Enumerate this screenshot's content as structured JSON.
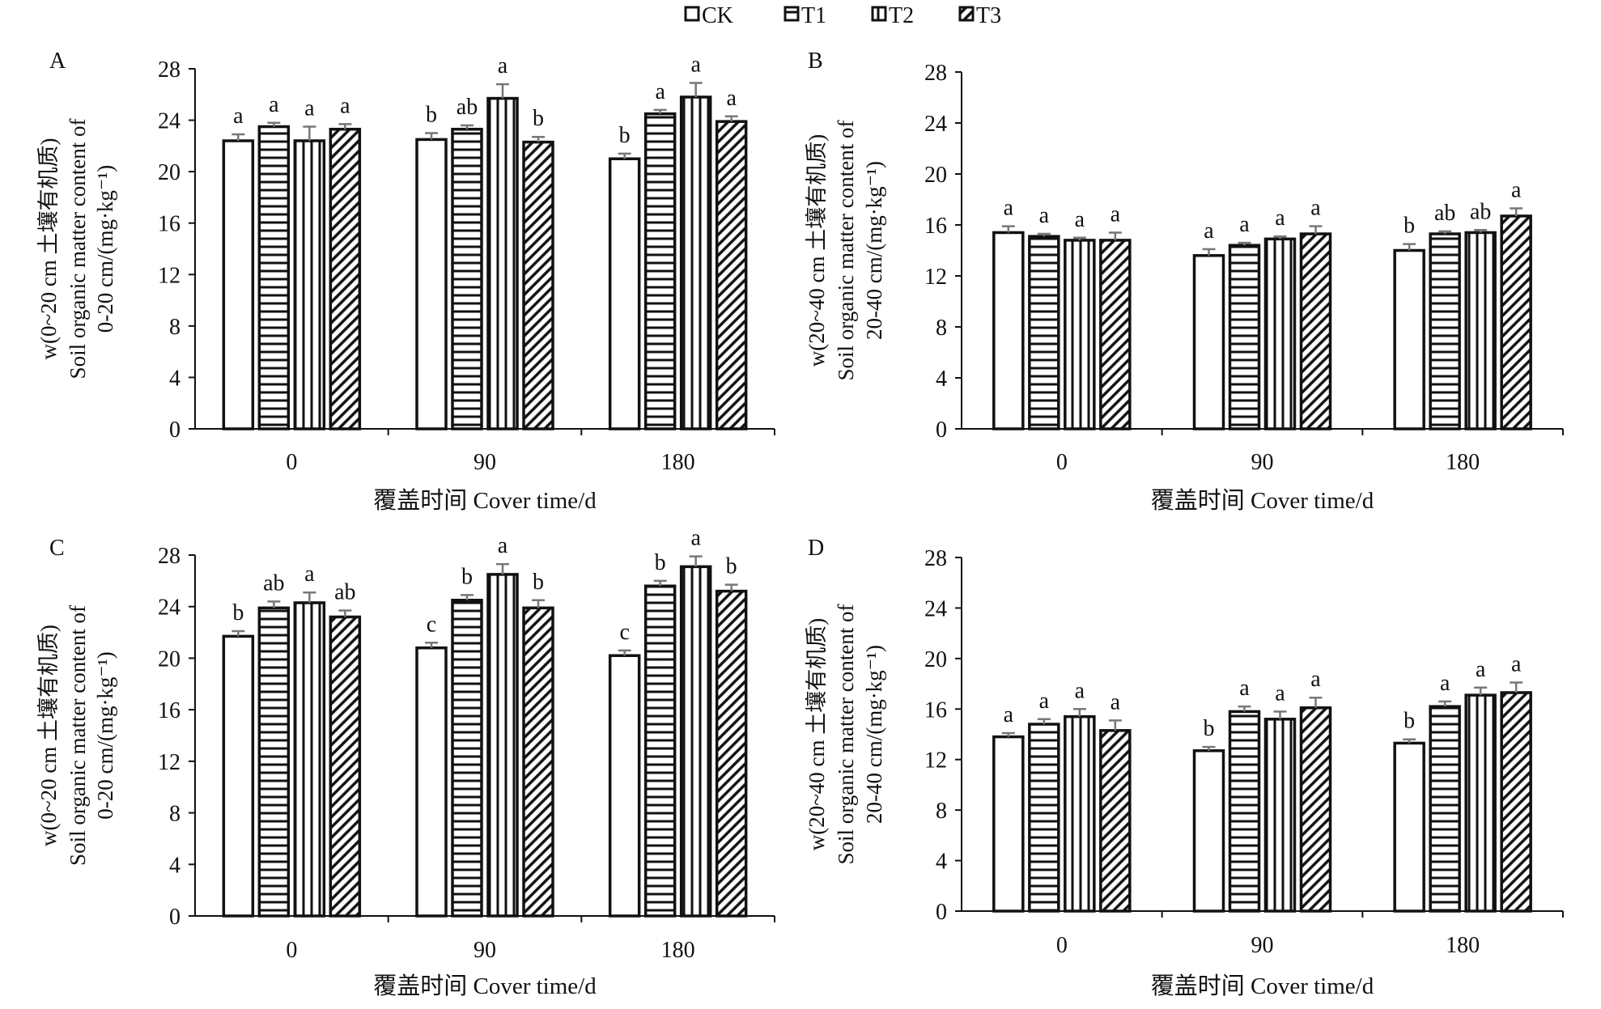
{
  "legend": [
    {
      "name": "CK",
      "pattern": "empty"
    },
    {
      "name": "T1",
      "pattern": "horizontal-lines"
    },
    {
      "name": "T2",
      "pattern": "vertical-lines"
    },
    {
      "name": "T3",
      "pattern": "diagonal-lines"
    }
  ],
  "colors": {
    "bar_stroke": "#111111",
    "bar_fill": "#ffffff",
    "error_bar": "#777777"
  },
  "chart_data": [
    {
      "type": "bar",
      "panel": "A",
      "ylabel_lines": [
        "w(0~20 cm 土壤有机质)",
        "Soil organic matter content of",
        "0-20 cm/(mg·kg⁻¹)"
      ],
      "xlabel": "覆盖时间 Cover time/d",
      "categories": [
        "0",
        "90",
        "180"
      ],
      "ylim": [
        0,
        28
      ],
      "yticks": [
        "0",
        "4",
        "8",
        "12",
        "16",
        "20",
        "24",
        "28"
      ],
      "grid": false,
      "series": [
        {
          "name": "CK",
          "values": [
            22.4,
            22.5,
            21.0
          ],
          "errors": [
            0.5,
            0.5,
            0.4
          ],
          "letters": [
            "a",
            "b",
            "b"
          ]
        },
        {
          "name": "T1",
          "values": [
            23.5,
            23.3,
            24.5
          ],
          "errors": [
            0.3,
            0.3,
            0.3
          ],
          "letters": [
            "a",
            "ab",
            "a"
          ]
        },
        {
          "name": "T2",
          "values": [
            22.4,
            25.7,
            25.8
          ],
          "errors": [
            1.1,
            1.1,
            1.1
          ],
          "letters": [
            "a",
            "a",
            "a"
          ]
        },
        {
          "name": "T3",
          "values": [
            23.3,
            22.3,
            23.9
          ],
          "errors": [
            0.4,
            0.4,
            0.4
          ],
          "letters": [
            "a",
            "b",
            "a"
          ]
        }
      ]
    },
    {
      "type": "bar",
      "panel": "B",
      "ylabel_lines": [
        "w(20~40 cm 土壤有机质)",
        "Soil organic matter content of",
        "20-40 cm/(mg·kg⁻¹)"
      ],
      "xlabel": "覆盖时间 Cover time/d",
      "categories": [
        "0",
        "90",
        "180"
      ],
      "ylim": [
        0,
        28
      ],
      "yticks": [
        "0",
        "4",
        "8",
        "12",
        "16",
        "20",
        "24",
        "28"
      ],
      "grid": false,
      "series": [
        {
          "name": "CK",
          "values": [
            15.4,
            13.6,
            14.0
          ],
          "errors": [
            0.5,
            0.5,
            0.5
          ],
          "letters": [
            "a",
            "a",
            "b"
          ]
        },
        {
          "name": "T1",
          "values": [
            15.1,
            14.4,
            15.3
          ],
          "errors": [
            0.2,
            0.2,
            0.2
          ],
          "letters": [
            "a",
            "a",
            "ab"
          ]
        },
        {
          "name": "T2",
          "values": [
            14.8,
            14.9,
            15.4
          ],
          "errors": [
            0.2,
            0.2,
            0.2
          ],
          "letters": [
            "a",
            "a",
            "ab"
          ]
        },
        {
          "name": "T3",
          "values": [
            14.8,
            15.3,
            16.7
          ],
          "errors": [
            0.6,
            0.6,
            0.6
          ],
          "letters": [
            "a",
            "a",
            "a"
          ]
        }
      ]
    },
    {
      "type": "bar",
      "panel": "C",
      "ylabel_lines": [
        "w(0~20 cm 土壤有机质)",
        "Soil organic matter content of",
        "0-20 cm/(mg·kg⁻¹)"
      ],
      "xlabel": "覆盖时间 Cover time/d",
      "categories": [
        "0",
        "90",
        "180"
      ],
      "ylim": [
        0,
        28
      ],
      "yticks": [
        "0",
        "4",
        "8",
        "12",
        "16",
        "20",
        "24",
        "28"
      ],
      "grid": false,
      "series": [
        {
          "name": "CK",
          "values": [
            21.7,
            20.8,
            20.2
          ],
          "errors": [
            0.4,
            0.4,
            0.4
          ],
          "letters": [
            "b",
            "c",
            "c"
          ]
        },
        {
          "name": "T1",
          "values": [
            23.9,
            24.5,
            25.6
          ],
          "errors": [
            0.5,
            0.4,
            0.4
          ],
          "letters": [
            "ab",
            "b",
            "b"
          ]
        },
        {
          "name": "T2",
          "values": [
            24.3,
            26.5,
            27.1
          ],
          "errors": [
            0.8,
            0.8,
            0.8
          ],
          "letters": [
            "a",
            "a",
            "a"
          ]
        },
        {
          "name": "T3",
          "values": [
            23.2,
            23.9,
            25.2
          ],
          "errors": [
            0.5,
            0.6,
            0.5
          ],
          "letters": [
            "ab",
            "b",
            "b"
          ]
        }
      ]
    },
    {
      "type": "bar",
      "panel": "D",
      "ylabel_lines": [
        "w(20~40 cm 土壤有机质)",
        "Soil organic matter content of",
        "20-40 cm/(mg·kg⁻¹)"
      ],
      "xlabel": "覆盖时间 Cover time/d",
      "categories": [
        "0",
        "90",
        "180"
      ],
      "ylim": [
        0,
        28
      ],
      "yticks": [
        "0",
        "4",
        "8",
        "12",
        "16",
        "20",
        "24",
        "28"
      ],
      "grid": false,
      "series": [
        {
          "name": "CK",
          "values": [
            13.8,
            12.7,
            13.3
          ],
          "errors": [
            0.3,
            0.3,
            0.3
          ],
          "letters": [
            "a",
            "b",
            "b"
          ]
        },
        {
          "name": "T1",
          "values": [
            14.8,
            15.8,
            16.2
          ],
          "errors": [
            0.4,
            0.4,
            0.4
          ],
          "letters": [
            "a",
            "a",
            "a"
          ]
        },
        {
          "name": "T2",
          "values": [
            15.4,
            15.2,
            17.1
          ],
          "errors": [
            0.6,
            0.6,
            0.6
          ],
          "letters": [
            "a",
            "a",
            "a"
          ]
        },
        {
          "name": "T3",
          "values": [
            14.3,
            16.1,
            17.3
          ],
          "errors": [
            0.8,
            0.8,
            0.8
          ],
          "letters": [
            "a",
            "a",
            "a"
          ]
        }
      ]
    }
  ]
}
